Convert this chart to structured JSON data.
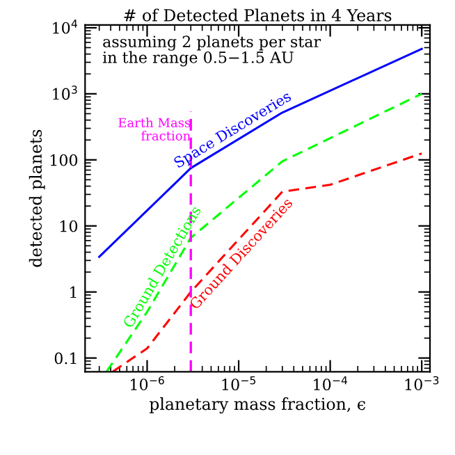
{
  "chart_data": {
    "type": "line",
    "title": "# of Detected Planets in 4 Years",
    "xlabel": "planetary mass fraction, ϵ",
    "ylabel": "detected planets",
    "log": "xy",
    "grid": false,
    "marker": "none",
    "xlim": [
      2.1e-07,
      0.00123
    ],
    "ylim": [
      0.062,
      11000
    ],
    "xticks": [
      {
        "value": 1e-06,
        "label": "10$^{−6}$"
      },
      {
        "value": 1e-05,
        "label": "10$^{−5}$"
      },
      {
        "value": 0.0001,
        "label": "10$^{−4}$"
      },
      {
        "value": 0.001,
        "label": "10$^{−3}$"
      }
    ],
    "yticks": [
      0.1,
      1,
      10,
      100,
      {
        "value": 1000,
        "label": "10$^{3}$"
      },
      {
        "value": 10000,
        "label": "10$^{4}$"
      }
    ],
    "series": [
      {
        "name": "Space Discoveries",
        "color": "#0000ff",
        "line_style": "solid",
        "x": [
          3e-07,
          3e-06,
          3e-05,
          0.001
        ],
        "values": [
          3.4,
          75,
          520,
          4800
        ]
      },
      {
        "name": "Ground Detections",
        "color": "#00ff00",
        "line_style": "dashed",
        "x": [
          3.6e-07,
          1e-06,
          3e-06,
          3e-05,
          0.001
        ],
        "values": [
          0.062,
          0.5,
          6.6,
          95,
          1000
        ]
      },
      {
        "name": "Ground Discoveries",
        "color": "#ff0000",
        "line_style": "dashed",
        "x": [
          4.2e-07,
          1e-06,
          3e-06,
          3e-05,
          0.0001,
          0.001
        ],
        "values": [
          0.062,
          0.14,
          1.0,
          33,
          42,
          125
        ]
      }
    ],
    "ref_lines": [
      {
        "axis": "x",
        "value": 3e-06,
        "label": "Earth Mass\nfraction",
        "color": "#ff00ff",
        "line_style": "dashed"
      }
    ],
    "annotations": [
      "assuming 2 planets per star\nin the range 0.5−1.5 AU"
    ]
  }
}
